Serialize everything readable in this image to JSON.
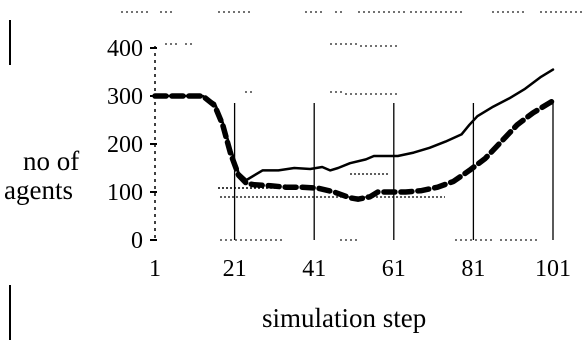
{
  "chart_data": {
    "type": "line",
    "xlabel": "simulation step",
    "ylabel_lines": [
      "no of",
      "agents"
    ],
    "xlim": [
      1,
      101
    ],
    "ylim": [
      0,
      400
    ],
    "x_ticks": [
      1,
      21,
      41,
      61,
      81,
      101
    ],
    "y_ticks": [
      0,
      100,
      200,
      300,
      400
    ],
    "grid": false,
    "legend": "none",
    "series": [
      {
        "style": "solid",
        "color": "#000000",
        "points": [
          [
            1,
            300
          ],
          [
            9,
            300
          ],
          [
            13,
            300
          ],
          [
            16,
            285
          ],
          [
            18,
            245
          ],
          [
            20,
            190
          ],
          [
            22,
            140
          ],
          [
            24,
            125
          ],
          [
            26,
            135
          ],
          [
            28,
            145
          ],
          [
            32,
            145
          ],
          [
            36,
            150
          ],
          [
            40,
            148
          ],
          [
            43,
            152
          ],
          [
            45,
            145
          ],
          [
            47,
            150
          ],
          [
            50,
            160
          ],
          [
            54,
            168
          ],
          [
            56,
            175
          ],
          [
            60,
            175
          ],
          [
            62,
            175
          ],
          [
            66,
            182
          ],
          [
            70,
            192
          ],
          [
            74,
            205
          ],
          [
            78,
            220
          ],
          [
            80,
            240
          ],
          [
            82,
            258
          ],
          [
            86,
            278
          ],
          [
            90,
            295
          ],
          [
            94,
            315
          ],
          [
            98,
            340
          ],
          [
            101,
            355
          ]
        ]
      },
      {
        "style": "dashed",
        "color": "#000000",
        "points": [
          [
            1,
            300
          ],
          [
            9,
            300
          ],
          [
            13,
            300
          ],
          [
            16,
            280
          ],
          [
            18,
            240
          ],
          [
            20,
            180
          ],
          [
            22,
            135
          ],
          [
            24,
            118
          ],
          [
            26,
            115
          ],
          [
            30,
            113
          ],
          [
            34,
            110
          ],
          [
            38,
            110
          ],
          [
            42,
            108
          ],
          [
            46,
            100
          ],
          [
            50,
            88
          ],
          [
            52,
            85
          ],
          [
            55,
            90
          ],
          [
            57,
            100
          ],
          [
            60,
            100
          ],
          [
            64,
            100
          ],
          [
            68,
            103
          ],
          [
            72,
            110
          ],
          [
            76,
            122
          ],
          [
            80,
            145
          ],
          [
            84,
            170
          ],
          [
            88,
            205
          ],
          [
            92,
            240
          ],
          [
            96,
            265
          ],
          [
            100,
            285
          ],
          [
            101,
            290
          ]
        ]
      }
    ]
  }
}
